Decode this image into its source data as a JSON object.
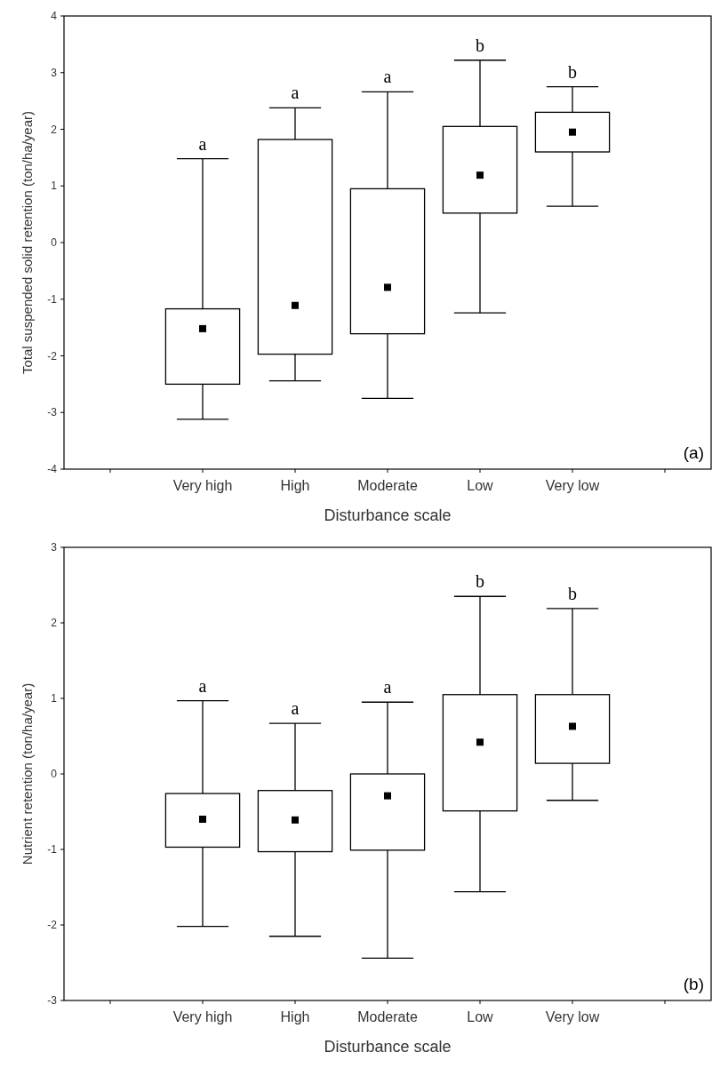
{
  "chart_data": [
    {
      "type": "box",
      "xlabel": "Disturbance scale",
      "ylabel": "Total suspended solid  retention (ton/ha/year)",
      "categories": [
        null,
        "Very high",
        "High",
        "Moderate",
        "Low",
        "Very low",
        null
      ],
      "ylim": [
        -4,
        4
      ],
      "yticks": [
        -4,
        -3,
        -2,
        -1,
        0,
        1,
        2,
        3,
        4
      ],
      "boxes": [
        null,
        {
          "low": -3.12,
          "q1": -2.5,
          "median": -1.52,
          "q3": -1.17,
          "high": 1.48
        },
        {
          "low": -2.44,
          "q1": -1.97,
          "median": -1.11,
          "q3": 1.82,
          "high": 2.38
        },
        {
          "low": -2.75,
          "q1": -1.61,
          "median": -0.79,
          "q3": 0.95,
          "high": 2.66
        },
        {
          "low": -1.24,
          "q1": 0.52,
          "median": 1.19,
          "q3": 2.05,
          "high": 3.22
        },
        {
          "low": 0.64,
          "q1": 1.6,
          "median": 1.95,
          "q3": 2.3,
          "high": 2.75
        },
        null
      ],
      "annotations": [
        {
          "text": "a",
          "x": "Very high",
          "y": 1.48
        },
        {
          "text": "a",
          "x": "High",
          "y": 2.38
        },
        {
          "text": "a",
          "x": "Moderate",
          "y": 2.66
        },
        {
          "text": "b",
          "x": "Low",
          "y": 3.22
        },
        {
          "text": "b",
          "x": "Very low",
          "y": 2.75
        },
        "(a)"
      ]
    },
    {
      "type": "box",
      "xlabel": "Disturbance scale",
      "ylabel": "Nutrient retention (ton/ha/year)",
      "categories": [
        null,
        "Very high",
        "High",
        "Moderate",
        "Low",
        "Very low",
        null
      ],
      "ylim": [
        -3,
        3
      ],
      "yticks": [
        -3,
        -2,
        -1,
        0,
        1,
        2,
        3
      ],
      "boxes": [
        null,
        {
          "low": -2.02,
          "q1": -0.97,
          "median": -0.6,
          "q3": -0.26,
          "high": 0.97
        },
        {
          "low": -2.15,
          "q1": -1.03,
          "median": -0.61,
          "q3": -0.22,
          "high": 0.67
        },
        {
          "low": -2.44,
          "q1": -1.01,
          "median": -0.29,
          "q3": 0,
          "high": 0.95
        },
        {
          "low": -1.56,
          "q1": -0.49,
          "median": 0.42,
          "q3": 1.05,
          "high": 2.35
        },
        {
          "low": -0.35,
          "q1": 0.14,
          "median": 0.63,
          "q3": 1.05,
          "high": 2.19
        },
        null
      ],
      "annotations": [
        {
          "text": "a",
          "x": "Very high",
          "y": 0.97
        },
        {
          "text": "a",
          "x": "High",
          "y": 0.67
        },
        {
          "text": "a",
          "x": "Moderate",
          "y": 0.95
        },
        {
          "text": "b",
          "x": "Low",
          "y": 2.35
        },
        {
          "text": "b",
          "x": "Very low",
          "y": 2.19
        },
        "(b)"
      ]
    }
  ]
}
